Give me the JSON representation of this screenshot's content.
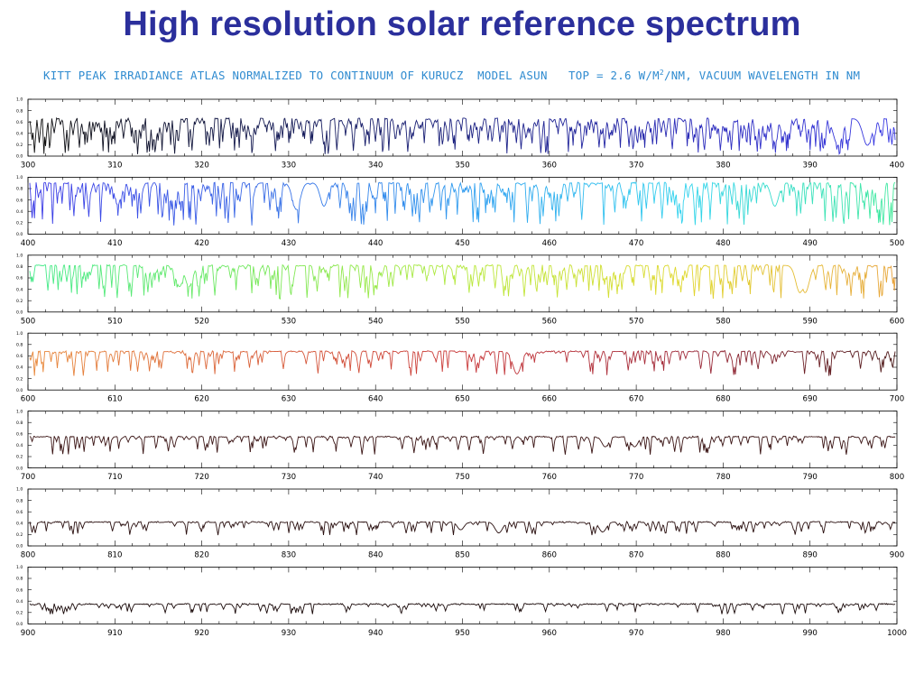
{
  "slide": {
    "title": "High resolution solar reference spectrum",
    "header_main": "KITT PEAK IRRADIANCE ATLAS NORMALIZED TO CONTINUUM OF KURUCZ  MODEL ASUN   TOP = 2.6 W/M",
    "header_sup": "2",
    "header_tail": "/NM, VACUUM WAVELENGTH IN NM"
  },
  "colors": {
    "title": "#2b2f9c",
    "header": "#2f8bd0"
  },
  "chart_data": {
    "type": "line",
    "xlabel": "",
    "ylabel": "",
    "ylim": [
      0.0,
      1.0
    ],
    "yticks": [
      "1.0",
      "0.8",
      "0.6",
      "0.4",
      "0.2",
      "0.0"
    ],
    "grid": false,
    "panels": [
      {
        "xlim": [
          300,
          400
        ],
        "xticks": [
          "300",
          "310",
          "320",
          "330",
          "340",
          "350",
          "360",
          "370",
          "380",
          "390",
          "400"
        ],
        "continuum": 0.66,
        "density": 1.0,
        "deep_lines": [
          {
            "x": 393.4,
            "depth": 0.55
          },
          {
            "x": 396.8,
            "depth": 0.55
          }
        ],
        "color_stops": [
          "#101010",
          "#141a50",
          "#1a2080",
          "#2a2ab8",
          "#3b3be6"
        ]
      },
      {
        "xlim": [
          400,
          500
        ],
        "xticks": [
          "400",
          "410",
          "420",
          "430",
          "440",
          "450",
          "460",
          "470",
          "480",
          "490",
          "500"
        ],
        "continuum": 0.9,
        "density": 0.8,
        "deep_lines": [
          {
            "x": 410.2,
            "depth": 0.3
          },
          {
            "x": 430.8,
            "depth": 0.4
          },
          {
            "x": 434.0,
            "depth": 0.35
          },
          {
            "x": 486.1,
            "depth": 0.35
          }
        ],
        "color_stops": [
          "#3b3be6",
          "#3a6be6",
          "#2f9ef0",
          "#32d3ee",
          "#42ea9a"
        ]
      },
      {
        "xlim": [
          500,
          600
        ],
        "xticks": [
          "500",
          "510",
          "520",
          "530",
          "540",
          "550",
          "560",
          "570",
          "580",
          "590",
          "600"
        ],
        "continuum": 0.82,
        "density": 0.6,
        "deep_lines": [
          {
            "x": 517.3,
            "depth": 0.35
          },
          {
            "x": 518.4,
            "depth": 0.35
          },
          {
            "x": 589.0,
            "depth": 0.45
          },
          {
            "x": 589.6,
            "depth": 0.45
          }
        ],
        "color_stops": [
          "#44ea88",
          "#74e85a",
          "#b8e93c",
          "#e0d82e",
          "#e8a23a"
        ]
      },
      {
        "xlim": [
          600,
          700
        ],
        "xticks": [
          "600",
          "610",
          "620",
          "630",
          "640",
          "650",
          "660",
          "670",
          "680",
          "690",
          "700"
        ],
        "continuum": 0.68,
        "density": 0.45,
        "deep_lines": [
          {
            "x": 656.3,
            "depth": 0.45
          }
        ],
        "color_stops": [
          "#e8873a",
          "#d9603a",
          "#c8383a",
          "#a02a3a",
          "#4a1a1a"
        ]
      },
      {
        "xlim": [
          700,
          800
        ],
        "xticks": [
          "700",
          "710",
          "720",
          "730",
          "740",
          "750",
          "760",
          "770",
          "780",
          "790",
          "800"
        ],
        "continuum": 0.55,
        "density": 0.35,
        "deep_lines": [
          {
            "x": 766.5,
            "depth": 0.25
          },
          {
            "x": 769.9,
            "depth": 0.25
          }
        ],
        "color_stops": [
          "#3a1414",
          "#3a1414",
          "#3a1414",
          "#3a1414",
          "#3a1414"
        ]
      },
      {
        "xlim": [
          800,
          900
        ],
        "xticks": [
          "800",
          "810",
          "820",
          "830",
          "840",
          "850",
          "860",
          "870",
          "880",
          "890",
          "900"
        ],
        "continuum": 0.42,
        "density": 0.3,
        "deep_lines": [
          {
            "x": 849.8,
            "depth": 0.25
          },
          {
            "x": 854.2,
            "depth": 0.35
          },
          {
            "x": 866.2,
            "depth": 0.32
          }
        ],
        "color_stops": [
          "#2a1010",
          "#2a1010",
          "#2a1010",
          "#2a1010",
          "#2a1010"
        ]
      },
      {
        "xlim": [
          900,
          1000
        ],
        "xticks": [
          "900",
          "910",
          "920",
          "930",
          "940",
          "950",
          "960",
          "970",
          "980",
          "990",
          "1000"
        ],
        "continuum": 0.35,
        "density": 0.25,
        "deep_lines": [],
        "color_stops": [
          "#1a0a0a",
          "#1a0a0a",
          "#1a0a0a",
          "#1a0a0a",
          "#1a0a0a"
        ]
      }
    ]
  }
}
